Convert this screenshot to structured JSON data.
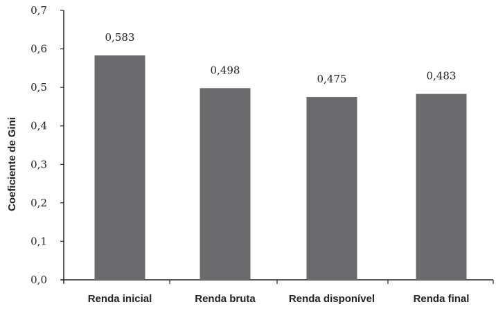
{
  "chart_data": {
    "type": "bar",
    "title": "",
    "xlabel": "",
    "ylabel": "Coeficiente de Gini",
    "ylim": [
      0,
      0.7
    ],
    "yticks": [
      "0,0",
      "0,1",
      "0,2",
      "0,3",
      "0,4",
      "0,5",
      "0,6",
      "0,7"
    ],
    "categories": [
      "Renda inicial",
      "Renda bruta",
      "Renda disponível",
      "Renda final"
    ],
    "values": [
      0.583,
      0.498,
      0.475,
      0.483
    ],
    "value_labels": [
      "0,583",
      "0,498",
      "0,475",
      "0,483"
    ],
    "bar_color": "#6b6b6d",
    "grid": false,
    "legend": "none"
  }
}
